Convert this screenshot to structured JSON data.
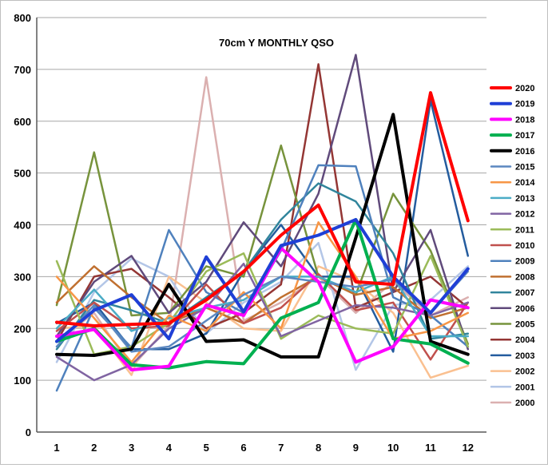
{
  "chart_data": {
    "type": "line",
    "title": "70cm Y MONTHLY QSO",
    "xlabel": "",
    "ylabel": "",
    "x": [
      1,
      2,
      3,
      4,
      5,
      6,
      7,
      8,
      9,
      10,
      11,
      12
    ],
    "x_tick_labels": [
      "1",
      "2",
      "3",
      "4",
      "5",
      "6",
      "7",
      "8",
      "9",
      "10",
      "11",
      "12"
    ],
    "ylim": [
      0,
      800
    ],
    "y_tick_labels": [
      "0",
      "100",
      "200",
      "300",
      "400",
      "500",
      "600",
      "700",
      "800"
    ],
    "grid": "horizontal",
    "legend_position": "right",
    "series": [
      {
        "name": "2020",
        "color": "#ff0000",
        "width": 4,
        "values": [
          212,
          205,
          208,
          210,
          255,
          310,
          380,
          438,
          290,
          285,
          655,
          408
        ]
      },
      {
        "name": "2019",
        "color": "#1f3fd6",
        "width": 4,
        "values": [
          175,
          235,
          265,
          180,
          338,
          232,
          360,
          380,
          410,
          300,
          230,
          315
        ]
      },
      {
        "name": "2018",
        "color": "#ff00ff",
        "width": 4,
        "values": [
          185,
          198,
          120,
          127,
          245,
          225,
          355,
          290,
          135,
          165,
          255,
          240
        ]
      },
      {
        "name": "2017",
        "color": "#00b050",
        "width": 4,
        "values": [
          175,
          200,
          130,
          124,
          136,
          132,
          220,
          250,
          410,
          180,
          170,
          133
        ]
      },
      {
        "name": "2016",
        "color": "#000000",
        "width": 4,
        "values": [
          150,
          148,
          160,
          285,
          175,
          178,
          145,
          145,
          375,
          613,
          175,
          150
        ]
      },
      {
        "name": "2015",
        "color": "#5b87c0",
        "width": 2.5,
        "values": [
          165,
          245,
          155,
          165,
          215,
          265,
          300,
          290,
          280,
          295,
          230,
          310
        ]
      },
      {
        "name": "2014",
        "color": "#f79646",
        "width": 2.5,
        "values": [
          300,
          220,
          135,
          225,
          195,
          270,
          200,
          405,
          300,
          180,
          195,
          230
        ]
      },
      {
        "name": "2013",
        "color": "#4bacc6",
        "width": 2.5,
        "values": [
          200,
          275,
          195,
          220,
          240,
          255,
          300,
          300,
          270,
          300,
          185,
          185
        ]
      },
      {
        "name": "2012",
        "color": "#8064a2",
        "width": 2.5,
        "values": [
          145,
          100,
          130,
          200,
          240,
          325,
          185,
          215,
          245,
          240,
          225,
          250
        ]
      },
      {
        "name": "2011",
        "color": "#9bbb59",
        "width": 2.5,
        "values": [
          330,
          150,
          165,
          210,
          310,
          345,
          180,
          225,
          200,
          190,
          340,
          165
        ]
      },
      {
        "name": "2010",
        "color": "#c0504d",
        "width": 2.5,
        "values": [
          195,
          250,
          200,
          205,
          285,
          210,
          240,
          305,
          235,
          250,
          140,
          250
        ]
      },
      {
        "name": "2009",
        "color": "#4f81bd",
        "width": 2.5,
        "values": [
          80,
          240,
          163,
          390,
          270,
          230,
          350,
          515,
          513,
          260,
          225,
          165
        ]
      },
      {
        "name": "2008",
        "color": "#c07030",
        "width": 2.5,
        "values": [
          250,
          320,
          260,
          210,
          240,
          210,
          260,
          300,
          265,
          280,
          220,
          240
        ]
      },
      {
        "name": "2007",
        "color": "#31859c",
        "width": 2.5,
        "values": [
          160,
          255,
          235,
          210,
          260,
          310,
          410,
          480,
          445,
          345,
          180,
          190
        ]
      },
      {
        "name": "2006",
        "color": "#604a7b",
        "width": 2.5,
        "values": [
          185,
          290,
          340,
          230,
          290,
          405,
          320,
          460,
          728,
          270,
          390,
          160
        ]
      },
      {
        "name": "2005",
        "color": "#77933c",
        "width": 2.5,
        "values": [
          245,
          540,
          225,
          230,
          320,
          300,
          553,
          300,
          265,
          460,
          350,
          170
        ]
      },
      {
        "name": "2004",
        "color": "#943634",
        "width": 2.5,
        "values": [
          175,
          300,
          315,
          260,
          200,
          230,
          285,
          710,
          240,
          270,
          300,
          240
        ]
      },
      {
        "name": "2003",
        "color": "#245c9e",
        "width": 2.5,
        "values": [
          210,
          250,
          160,
          160,
          190,
          310,
          400,
          300,
          300,
          155,
          640,
          340
        ]
      },
      {
        "name": "2002",
        "color": "#fac090",
        "width": 2.5,
        "values": [
          200,
          205,
          110,
          300,
          250,
          200,
          195,
          320,
          290,
          230,
          105,
          128
        ]
      },
      {
        "name": "2001",
        "color": "#b3c6e7",
        "width": 2.5,
        "values": [
          135,
          270,
          335,
          300,
          190,
          250,
          290,
          365,
          120,
          245,
          255,
          320
        ]
      },
      {
        "name": "2000",
        "color": "#dbb0b0",
        "width": 2.5,
        "values": [
          175,
          230,
          125,
          205,
          685,
          215,
          250,
          300,
          230,
          290,
          225,
          260
        ]
      }
    ]
  }
}
